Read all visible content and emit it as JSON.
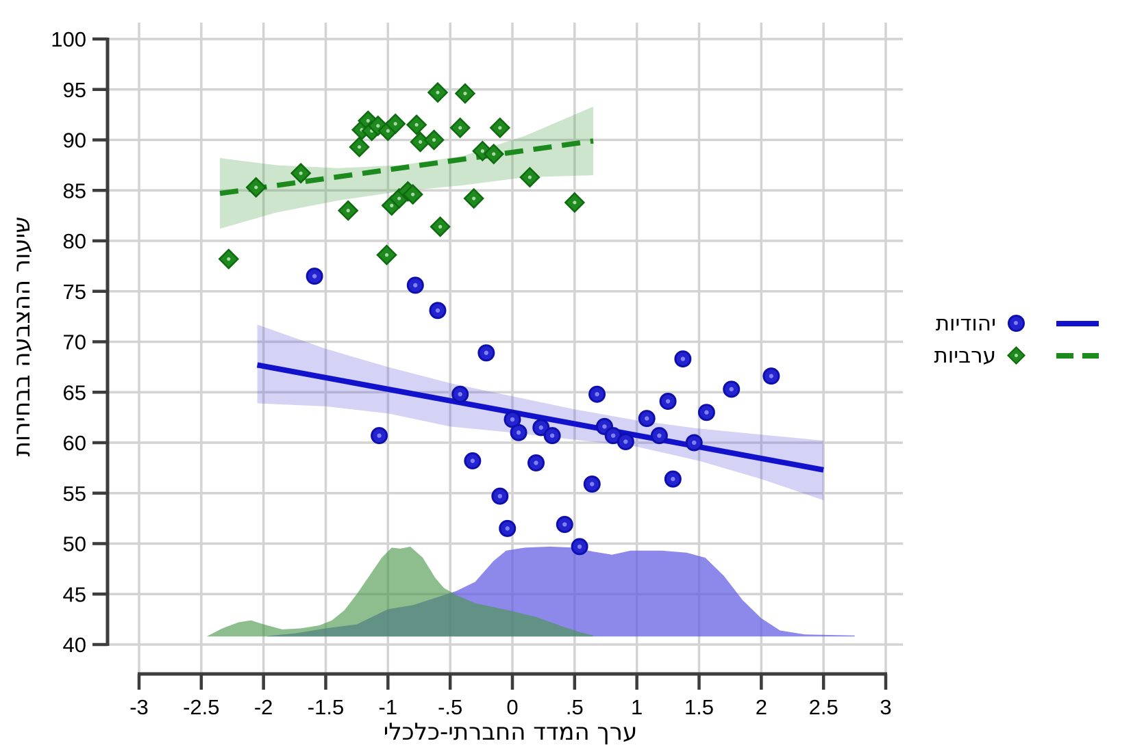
{
  "figure": {
    "background": "#ffffff",
    "x_axis_title": "ערך המדד החברתי-כלכלי",
    "y_axis_title": "שיעור ההצבעה בבחירות"
  },
  "legend": {
    "position": "right",
    "items": [
      {
        "label": "יהודיות",
        "marker": "circle",
        "line": "solid",
        "color": "#1212cc"
      },
      {
        "label": "ערביות",
        "marker": "diamond",
        "line": "dashed",
        "color": "#1c8a1c"
      }
    ]
  },
  "colors": {
    "grid": "#d3d3d3",
    "axis": "#3d3d3d",
    "text": "#000000",
    "jewish_blue": "#1212cc",
    "arab_green": "#1c8a1c",
    "jewish_band": "rgba(100,95,220,0.28)",
    "arab_band": "rgba(90,170,90,0.30)",
    "jewish_density": "rgba(97,92,226,0.72)",
    "arab_density": "rgba(72,150,72,0.62)"
  },
  "chart_data": {
    "type": "scatter",
    "title": "",
    "xlabel": "ערך המדד החברתי-כלכלי",
    "ylabel": "שיעור ההצבעה בבחירות",
    "xlim": [
      -3,
      3
    ],
    "ylim": [
      40,
      100
    ],
    "grid": true,
    "legend_position": "right",
    "x_ticks": [
      -3,
      -2.5,
      -2,
      -1.5,
      -1,
      -0.5,
      0,
      0.5,
      1,
      1.5,
      2,
      2.5,
      3
    ],
    "x_tick_labels": [
      "-3",
      "-2.5",
      "-2",
      "-1.5",
      "-1",
      "-.5",
      "0",
      ".5",
      "1",
      "1.5",
      "2",
      "2.5",
      "3"
    ],
    "y_ticks": [
      40,
      45,
      50,
      55,
      60,
      65,
      70,
      75,
      80,
      85,
      90,
      95,
      100
    ],
    "y_tick_labels": [
      "40",
      "45",
      "50",
      "55",
      "60",
      "65",
      "70",
      "75",
      "80",
      "85",
      "90",
      "95",
      "100"
    ],
    "series": [
      {
        "name": "יהודיות",
        "marker": "circle",
        "line_style": "solid",
        "color": "#1212cc",
        "points": [
          [
            -1.59,
            76.5
          ],
          [
            -1.07,
            60.7
          ],
          [
            -0.78,
            75.6
          ],
          [
            -0.6,
            73.1
          ],
          [
            -0.42,
            64.8
          ],
          [
            -0.32,
            58.2
          ],
          [
            -0.21,
            68.9
          ],
          [
            -0.1,
            54.7
          ],
          [
            -0.04,
            51.5
          ],
          [
            0.0,
            62.3
          ],
          [
            0.05,
            61.0
          ],
          [
            0.19,
            58.0
          ],
          [
            0.23,
            61.5
          ],
          [
            0.32,
            60.7
          ],
          [
            0.42,
            51.9
          ],
          [
            0.54,
            49.7
          ],
          [
            0.64,
            55.9
          ],
          [
            0.68,
            64.8
          ],
          [
            0.74,
            61.6
          ],
          [
            0.81,
            60.7
          ],
          [
            0.91,
            60.1
          ],
          [
            1.08,
            62.4
          ],
          [
            1.18,
            60.7
          ],
          [
            1.25,
            64.1
          ],
          [
            1.29,
            56.4
          ],
          [
            1.37,
            68.3
          ],
          [
            1.46,
            60.0
          ],
          [
            1.56,
            63.0
          ],
          [
            1.76,
            65.3
          ],
          [
            2.08,
            66.6
          ]
        ],
        "fit_line": {
          "from": [
            -2.05,
            67.7
          ],
          "to": [
            2.5,
            57.3
          ]
        },
        "band": {
          "upper": [
            [
              -2.05,
              71.7
            ],
            [
              -1.5,
              69.3
            ],
            [
              -1.0,
              67.5
            ],
            [
              -0.5,
              65.9
            ],
            [
              0,
              64.6
            ],
            [
              0.5,
              63.3
            ],
            [
              1.0,
              62.2
            ],
            [
              1.5,
              61.4
            ],
            [
              2.0,
              60.8
            ],
            [
              2.5,
              60.2
            ]
          ],
          "lower": [
            [
              -2.05,
              63.9
            ],
            [
              -1.5,
              63.6
            ],
            [
              -1.0,
              62.9
            ],
            [
              -0.5,
              61.6
            ],
            [
              0,
              61.0
            ],
            [
              0.5,
              60.3
            ],
            [
              1.0,
              59.6
            ],
            [
              1.5,
              58.2
            ],
            [
              2.0,
              56.4
            ],
            [
              2.5,
              54.3
            ]
          ]
        },
        "density": {
          "baseline": 40.8,
          "points": [
            [
              -1.97,
              40.85
            ],
            [
              -1.75,
              41.1
            ],
            [
              -1.5,
              41.6
            ],
            [
              -1.25,
              42.0
            ],
            [
              -1.0,
              43.5
            ],
            [
              -0.8,
              43.9
            ],
            [
              -0.6,
              44.7
            ],
            [
              -0.45,
              45.3
            ],
            [
              -0.3,
              46.2
            ],
            [
              -0.15,
              48.3
            ],
            [
              -0.05,
              49.3
            ],
            [
              0.1,
              49.6
            ],
            [
              0.3,
              49.7
            ],
            [
              0.5,
              49.6
            ],
            [
              0.65,
              49.2
            ],
            [
              0.8,
              48.9
            ],
            [
              0.95,
              49.3
            ],
            [
              1.2,
              49.3
            ],
            [
              1.4,
              49.1
            ],
            [
              1.55,
              48.6
            ],
            [
              1.7,
              46.8
            ],
            [
              1.85,
              44.4
            ],
            [
              2.0,
              42.6
            ],
            [
              2.15,
              41.4
            ],
            [
              2.35,
              41.0
            ],
            [
              2.55,
              40.95
            ],
            [
              2.75,
              40.9
            ]
          ]
        }
      },
      {
        "name": "ערביות",
        "marker": "diamond",
        "line_style": "dashed",
        "color": "#1c8a1c",
        "points": [
          [
            -2.28,
            78.2
          ],
          [
            -2.06,
            85.3
          ],
          [
            -1.7,
            86.7
          ],
          [
            -1.32,
            83.0
          ],
          [
            -1.23,
            89.3
          ],
          [
            -1.21,
            91.0
          ],
          [
            -1.16,
            91.9
          ],
          [
            -1.13,
            90.9
          ],
          [
            -1.08,
            91.4
          ],
          [
            -1.01,
            78.6
          ],
          [
            -1.0,
            90.9
          ],
          [
            -0.97,
            83.5
          ],
          [
            -0.94,
            91.6
          ],
          [
            -0.91,
            84.2
          ],
          [
            -0.84,
            84.9
          ],
          [
            -0.8,
            84.6
          ],
          [
            -0.77,
            91.5
          ],
          [
            -0.74,
            89.8
          ],
          [
            -0.63,
            90.0
          ],
          [
            -0.6,
            94.7
          ],
          [
            -0.58,
            81.4
          ],
          [
            -0.42,
            91.2
          ],
          [
            -0.38,
            94.6
          ],
          [
            -0.31,
            84.2
          ],
          [
            -0.24,
            88.9
          ],
          [
            -0.15,
            88.6
          ],
          [
            -0.1,
            91.2
          ],
          [
            0.14,
            86.3
          ],
          [
            0.5,
            83.8
          ]
        ],
        "fit_line": {
          "from": [
            -2.35,
            84.7
          ],
          "to": [
            0.65,
            89.9
          ]
        },
        "band": {
          "upper": [
            [
              -2.35,
              88.2
            ],
            [
              -1.9,
              87.5
            ],
            [
              -1.4,
              87.2
            ],
            [
              -0.9,
              87.5
            ],
            [
              -0.4,
              88.4
            ],
            [
              0.1,
              90.4
            ],
            [
              0.65,
              93.3
            ]
          ],
          "lower": [
            [
              -2.35,
              81.2
            ],
            [
              -1.9,
              82.8
            ],
            [
              -1.4,
              84.0
            ],
            [
              -0.9,
              84.9
            ],
            [
              -0.4,
              85.5
            ],
            [
              0.1,
              86.3
            ],
            [
              0.65,
              86.5
            ]
          ]
        },
        "density": {
          "baseline": 40.8,
          "points": [
            [
              -2.45,
              40.85
            ],
            [
              -2.33,
              41.6
            ],
            [
              -2.2,
              42.2
            ],
            [
              -2.1,
              42.4
            ],
            [
              -2.0,
              42.0
            ],
            [
              -1.85,
              41.5
            ],
            [
              -1.7,
              41.6
            ],
            [
              -1.55,
              41.9
            ],
            [
              -1.45,
              42.4
            ],
            [
              -1.35,
              43.4
            ],
            [
              -1.25,
              45.0
            ],
            [
              -1.15,
              46.8
            ],
            [
              -1.05,
              48.6
            ],
            [
              -0.97,
              49.6
            ],
            [
              -0.9,
              49.5
            ],
            [
              -0.82,
              49.7
            ],
            [
              -0.72,
              48.6
            ],
            [
              -0.62,
              46.6
            ],
            [
              -0.55,
              45.6
            ],
            [
              -0.45,
              44.9
            ],
            [
              -0.3,
              44.1
            ],
            [
              -0.15,
              43.7
            ],
            [
              0.0,
              43.3
            ],
            [
              0.2,
              42.7
            ],
            [
              0.4,
              41.8
            ],
            [
              0.55,
              41.2
            ],
            [
              0.65,
              40.9
            ]
          ]
        }
      }
    ]
  }
}
